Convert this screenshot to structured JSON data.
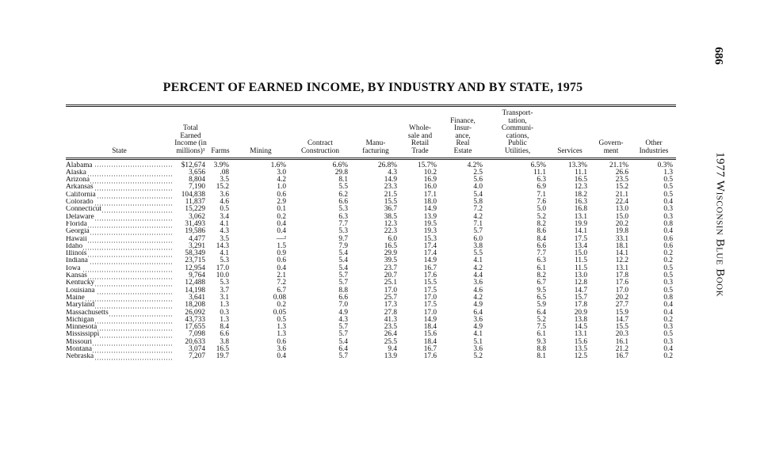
{
  "page_number": "686",
  "running_head": "1977 Wisconsin Blue Book",
  "title": "PERCENT OF EARNED INCOME, BY INDUSTRY AND BY STATE, 1975",
  "table": {
    "columns": [
      "State",
      "Total\nEarned\nIncome (in\nmillions)¹",
      "Farms",
      "Mining",
      "Contract\nConstruction",
      "Manu-\nfacturing",
      "Whole-\nsale and\nRetail\nTrade",
      "Finance,\nInsur-\nance,\nReal\nEstate",
      "Transport-\ntation,\nCommuni-\ncations,\nPublic\nUtilities,",
      "Services",
      "Govern-\nment",
      "Other\nIndustries"
    ],
    "rows": [
      [
        "Alabama",
        "$12,674",
        "3.9%",
        "1.6%",
        "6.6%",
        "26.8%",
        "15.7%",
        "4.2%",
        "6.5%",
        "13.3%",
        "21.1%",
        "0.3%"
      ],
      [
        "Alaska",
        "3,656",
        ".08",
        "3.0",
        "29.8",
        "4.3",
        "10.2",
        "2.5",
        "11.1",
        "11.1",
        "26.6",
        "1.3"
      ],
      [
        "Arizona",
        "8,804",
        "3.5",
        "4.2",
        "8.1",
        "14.9",
        "16.9",
        "5.6",
        "6.3",
        "16.5",
        "23.5",
        "0.5"
      ],
      [
        "Arkansas",
        "7,190",
        "15.2",
        "1.0",
        "5.5",
        "23.3",
        "16.0",
        "4.0",
        "6.9",
        "12.3",
        "15.2",
        "0.5"
      ],
      [
        "California",
        "104,838",
        "3.6",
        "0.6",
        "6.2",
        "21.5",
        "17.1",
        "5.4",
        "7.1",
        "18.2",
        "21.1",
        "0.5"
      ],
      [
        "Colorado",
        "11,837",
        "4.6",
        "2.9",
        "6.6",
        "15.5",
        "18.0",
        "5.8",
        "7.6",
        "16.3",
        "22.4",
        "0.4"
      ],
      [
        "Connecticut",
        "15,229",
        "0.5",
        "0.1",
        "5.3",
        "36.7",
        "14.9",
        "7.2",
        "5.0",
        "16.8",
        "13.0",
        "0.3"
      ],
      [
        "Delaware",
        "3,062",
        "3.4",
        "0.2",
        "6.3",
        "38.5",
        "13.9",
        "4.2",
        "5.2",
        "13.1",
        "15.0",
        "0.3"
      ],
      [
        "Florida",
        "31,493",
        "4.1",
        "0.4",
        "7.7",
        "12.3",
        "19.5",
        "7.1",
        "8.2",
        "19.9",
        "20.2",
        "0.8"
      ],
      [
        "Georgia",
        "19,586",
        "4.3",
        "0.4",
        "5.3",
        "22.3",
        "19.3",
        "5.7",
        "8.6",
        "14.1",
        "19.8",
        "0.4"
      ],
      [
        "Hawaii",
        "4,477",
        "3.5",
        "—²",
        "9.7",
        "6.0",
        "15.3",
        "6.0",
        "8.4",
        "17.5",
        "33.1",
        "0.6"
      ],
      [
        "Idaho",
        "3,291",
        "14.3",
        "1.5",
        "7.9",
        "16.5",
        "17.4",
        "3.8",
        "6.6",
        "13.4",
        "18.1",
        "0.6"
      ],
      [
        "Illinois",
        "58,349",
        "4.1",
        "0.9",
        "5.4",
        "29.9",
        "17.4",
        "5.5",
        "7.7",
        "15.0",
        "14.1",
        "0.2"
      ],
      [
        "Indiana",
        "23,715",
        "5.3",
        "0.6",
        "5.4",
        "39.5",
        "14.9",
        "4.1",
        "6.3",
        "11.5",
        "12.2",
        "0.2"
      ],
      [
        "Iowa",
        "12,954",
        "17.0",
        "0.4",
        "5.4",
        "23.7",
        "16.7",
        "4.2",
        "6.1",
        "11.5",
        "13.1",
        "0.5"
      ],
      [
        "Kansas",
        "9,764",
        "10.0",
        "2.1",
        "5.7",
        "20.7",
        "17.6",
        "4.4",
        "8.2",
        "13.0",
        "17.8",
        "0.5"
      ],
      [
        "Kentucky",
        "12,488",
        "5.3",
        "7.2",
        "5.7",
        "25.1",
        "15.5",
        "3.6",
        "6.7",
        "12.8",
        "17.6",
        "0.3"
      ],
      [
        "Louisiana",
        "14,198",
        "3.7",
        "6.7",
        "8.8",
        "17.0",
        "17.5",
        "4.6",
        "9.5",
        "14.7",
        "17.0",
        "0.5"
      ],
      [
        "Maine",
        "3,641",
        "3.1",
        "0.08",
        "6.6",
        "25.7",
        "17.0",
        "4.2",
        "6.5",
        "15.7",
        "20.2",
        "0.8"
      ],
      [
        "Maryland",
        "18,208",
        "1.3",
        "0.2",
        "7.0",
        "17.3",
        "17.5",
        "4.9",
        "5.9",
        "17.8",
        "27.7",
        "0.4"
      ],
      [
        "Massachusetts",
        "26,092",
        "0.3",
        "0.05",
        "4.9",
        "27.8",
        "17.0",
        "6.4",
        "6.4",
        "20.9",
        "15.9",
        "0.4"
      ],
      [
        "Michigan",
        "43,733",
        "1.3",
        "0.5",
        "4.3",
        "41.3",
        "14.9",
        "3.6",
        "5.2",
        "13.8",
        "14.7",
        "0.2"
      ],
      [
        "Minnesota",
        "17,655",
        "8.4",
        "1.3",
        "5.7",
        "23.5",
        "18.4",
        "4.9",
        "7.5",
        "14.5",
        "15.5",
        "0.3"
      ],
      [
        "Mississippi",
        "7,098",
        "6.6",
        "1.3",
        "5.7",
        "26.4",
        "15.6",
        "4.1",
        "6.1",
        "13.1",
        "20.3",
        "0.5"
      ],
      [
        "Missouri",
        "20,633",
        "3.8",
        "0.6",
        "5.4",
        "25.5",
        "18.4",
        "5.1",
        "9.3",
        "15.6",
        "16.1",
        "0.3"
      ],
      [
        "Montana",
        "3,074",
        "16.5",
        "3.6",
        "6.4",
        "9.4",
        "16.7",
        "3.6",
        "8.8",
        "13.5",
        "21.2",
        "0.4"
      ],
      [
        "Nebraska",
        "7,207",
        "19.7",
        "0.4",
        "5.7",
        "13.9",
        "17.6",
        "5.2",
        "8.1",
        "12.5",
        "16.7",
        "0.2"
      ]
    ]
  }
}
